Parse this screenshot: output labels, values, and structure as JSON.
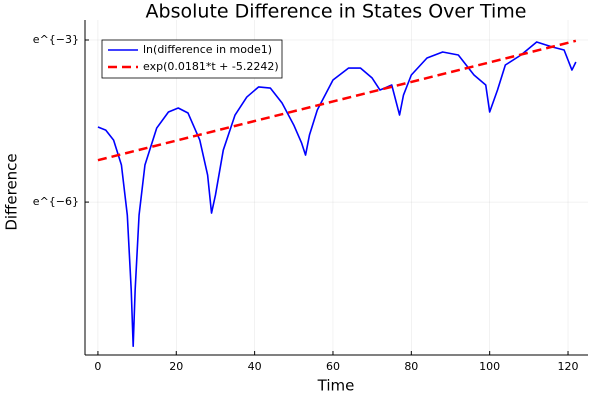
{
  "chart_data": {
    "type": "line",
    "title": "Absolute Difference in States Over Time",
    "x_label": "Time",
    "y_label": "Difference",
    "xlim": [
      -3.3,
      125.1
    ],
    "xticks": [
      0,
      20,
      40,
      60,
      80,
      100,
      120
    ],
    "ylim": [
      0.0001463,
      0.07208
    ],
    "yticks": [
      {
        "value": 0.049787,
        "label": "e^{−3}"
      },
      {
        "value": 0.0024788,
        "label": "e^{−6}"
      }
    ],
    "log_scale_y": true,
    "grid": true,
    "legend": "top-left",
    "series": [
      {
        "name": "ln(difference in mode1)",
        "color": "#0000ff",
        "style": "solid",
        "x": [
          0,
          2,
          4,
          6,
          7.5,
          8.5,
          9,
          9.5,
          10.5,
          12,
          15,
          18,
          20.5,
          23,
          26,
          28,
          29,
          30,
          32,
          35,
          38,
          41,
          44,
          47,
          50,
          52,
          53,
          54,
          56,
          60,
          64,
          67,
          70,
          72,
          75,
          77,
          78,
          80,
          84,
          88,
          92,
          96,
          99,
          100,
          102,
          104,
          108,
          112,
          116,
          119,
          121,
          122
        ],
        "values": [
          0.00994,
          0.0094,
          0.00781,
          0.00492,
          0.001948,
          0.000486,
          0.000172,
          0.000486,
          0.001948,
          0.00492,
          0.00975,
          0.01313,
          0.01414,
          0.01289,
          0.00781,
          0.004087,
          0.002022,
          0.002823,
          0.006493,
          0.01242,
          0.01732,
          0.02087,
          0.02047,
          0.0155,
          0.01031,
          0.00739,
          0.005916,
          0.008574,
          0.01363,
          0.02373,
          0.02963,
          0.02963,
          0.02463,
          0.01973,
          0.02165,
          0.01242,
          0.01798,
          0.02605,
          0.03569,
          0.03988,
          0.03771,
          0.02605,
          0.02165,
          0.01313,
          0.01973,
          0.03134,
          0.03771,
          0.04798,
          0.04372,
          0.04138,
          0.02855,
          0.03314
        ]
      },
      {
        "name": "exp(0.0181*t + -5.2242)",
        "color": "#ff0000",
        "style": "dashed",
        "x": [
          0,
          122
        ],
        "values": [
          0.005385,
          0.04901
        ]
      }
    ]
  }
}
